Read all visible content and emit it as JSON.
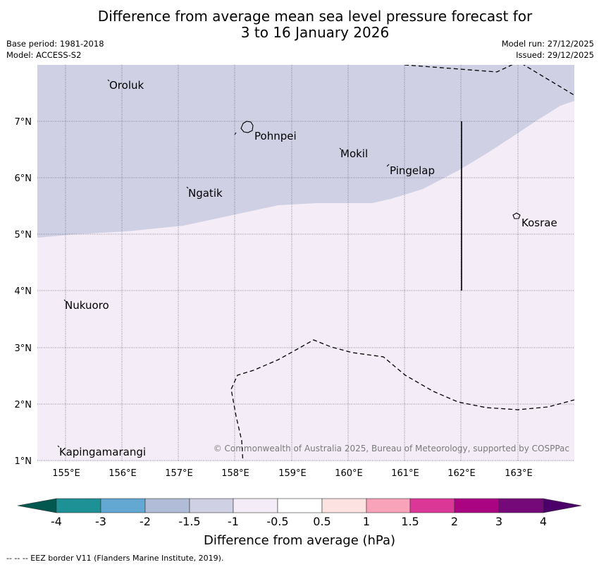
{
  "title_line1": "Difference from average mean sea level pressure forecast for",
  "title_line2": "3 to 16 January 2026",
  "base_period": "Base period: 1981-2018",
  "model": "Model: ACCESS-S2",
  "model_run": "Model run: 27/12/2025",
  "issued": "Issued: 29/12/2025",
  "copyright": "© Commonwealth of Australia 2025, Bureau of Meteorology, supported by COSPPac",
  "footer": "--  --  -- EEZ border V11 (Flanders Marine Institute, 2019).",
  "lat_labels": [
    "7°N",
    "6°N",
    "5°N",
    "4°N",
    "3°N",
    "2°N",
    "1°N"
  ],
  "lon_labels": [
    "155°E",
    "156°E",
    "157°E",
    "158°E",
    "159°E",
    "160°E",
    "161°E",
    "162°E",
    "163°E"
  ],
  "places": {
    "oroluk": "Oroluk",
    "pohnpei": "Pohnpei",
    "mokil": "Mokil",
    "pingelap": "Pingelap",
    "ngatik": "Ngatik",
    "kosrae": "Kosrae",
    "nukuoro": "Nukuoro",
    "kapingamarangi": "Kapingamarangi"
  },
  "colorbar": {
    "title": "Difference from average (hPa)",
    "ticks": [
      "-4",
      "-3",
      "-2",
      "-1.5",
      "-1",
      "-0.5",
      "0.5",
      "1",
      "1.5",
      "2",
      "3",
      "4"
    ],
    "colors": {
      "below_min": "#02574f",
      "c1": "#1e9196",
      "c2": "#63a8d2",
      "c3": "#b0bcd8",
      "c4": "#cfd0e4",
      "c5": "#f4ecf6",
      "c6": "#ffffff",
      "c7": "#fde2e2",
      "c8": "#f9a3ba",
      "c9": "#db3796",
      "c10": "#ab0482",
      "c11": "#76097a",
      "above_max": "#4a0068"
    }
  },
  "chart_data": {
    "type": "map",
    "variable": "Difference from average mean sea level pressure (hPa)",
    "lon_range": [
      154.5,
      164
    ],
    "lat_range": [
      1,
      8
    ],
    "regions": [
      {
        "category": "-1.5 to -1",
        "area": "north-west of the boundary"
      },
      {
        "category": "-1 to -0.5",
        "area": "south-east of the boundary"
      }
    ]
  }
}
